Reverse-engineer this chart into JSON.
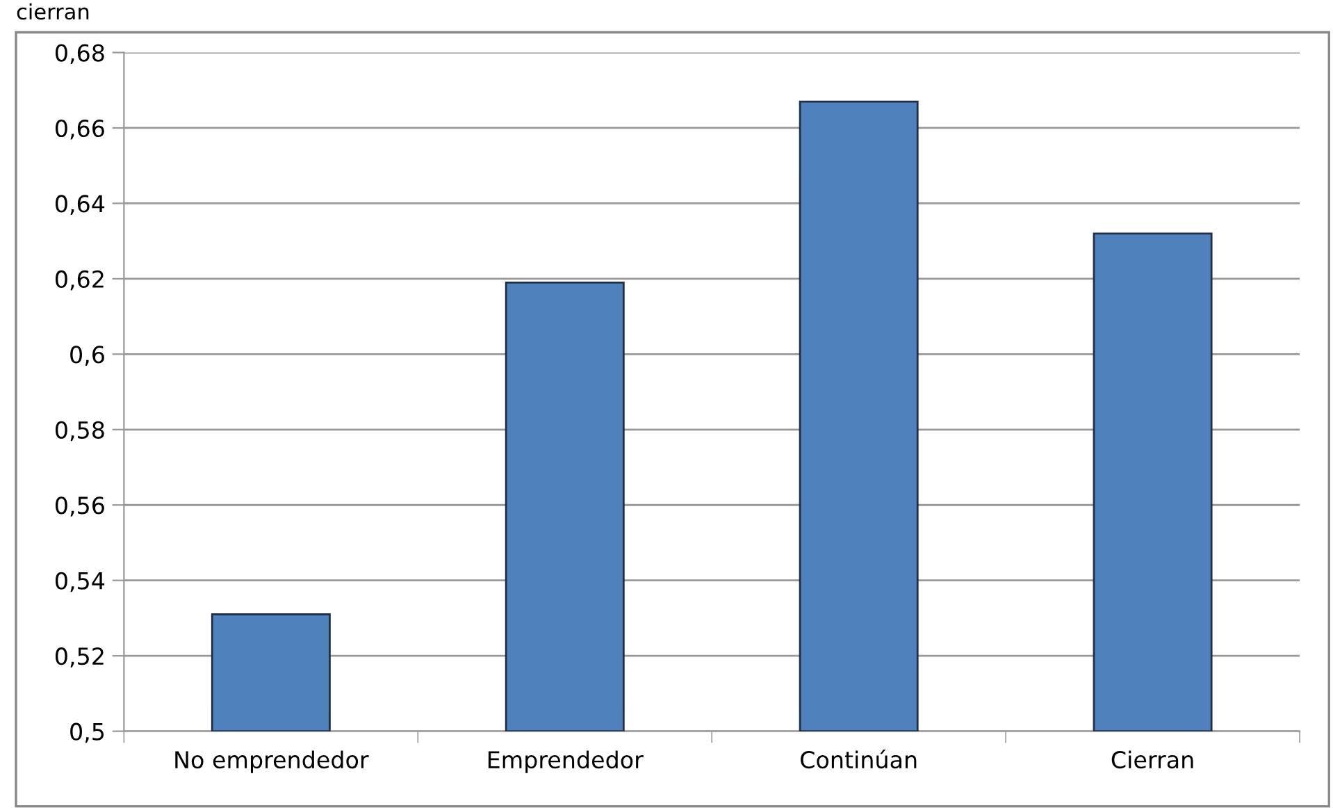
{
  "chart_data": {
    "type": "bar",
    "annotations": [
      "cierran"
    ],
    "categories": [
      "No emprendedor",
      "Emprendedor",
      "Continúan",
      "Cierran"
    ],
    "values": [
      0.531,
      0.619,
      0.667,
      0.632
    ],
    "color": "#4f81bd",
    "ylim": [
      0.5,
      0.68
    ],
    "yticks": [
      {
        "value": 0.5,
        "label": "0,5"
      },
      {
        "value": 0.52,
        "label": "0,52"
      },
      {
        "value": 0.54,
        "label": "0,54"
      },
      {
        "value": 0.56,
        "label": "0,56"
      },
      {
        "value": 0.58,
        "label": "0,58"
      },
      {
        "value": 0.6,
        "label": "0,6"
      },
      {
        "value": 0.62,
        "label": "0,62"
      },
      {
        "value": 0.64,
        "label": "0,64"
      },
      {
        "value": 0.66,
        "label": "0,66"
      },
      {
        "value": 0.68,
        "label": "0,68"
      }
    ],
    "grid": "y",
    "legend": false
  }
}
